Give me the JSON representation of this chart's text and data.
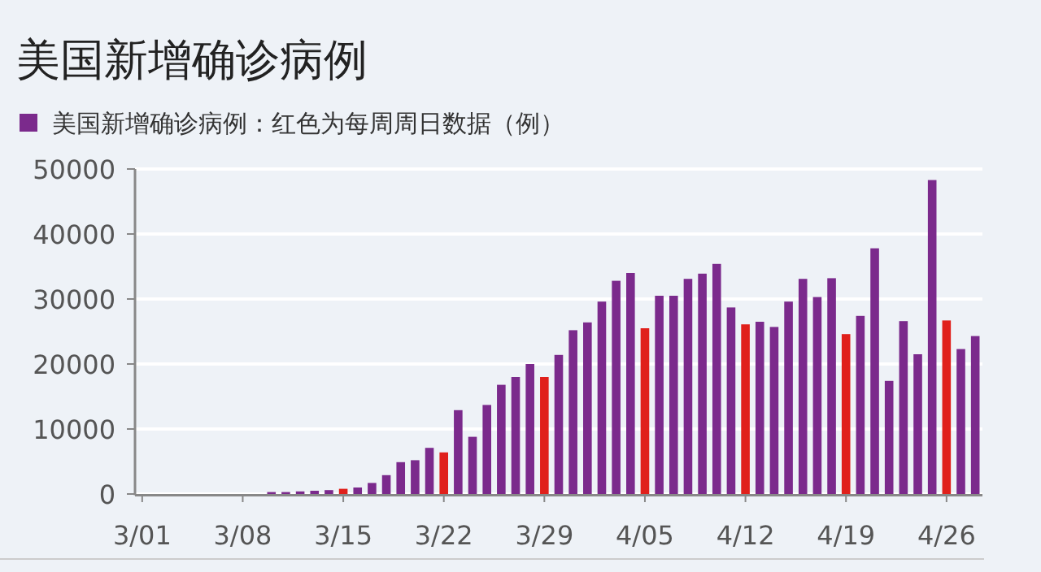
{
  "chart_data": {
    "type": "bar",
    "title": "美国新增确诊病例",
    "categories": [
      "3/01",
      null,
      null,
      null,
      null,
      null,
      null,
      "3/08",
      null,
      null,
      null,
      null,
      null,
      null,
      "3/15",
      null,
      null,
      null,
      null,
      null,
      null,
      "3/22",
      null,
      null,
      null,
      null,
      null,
      null,
      "3/29",
      null,
      null,
      null,
      null,
      null,
      null,
      "4/05",
      null,
      null,
      null,
      null,
      null,
      null,
      "4/12",
      null,
      null,
      null,
      null,
      null,
      null,
      "4/19",
      null,
      null,
      null,
      null,
      null,
      null,
      "4/26",
      null,
      null
    ],
    "series": [
      {
        "name": "美国新增确诊病例：红色为每周周日数据（例）",
        "color": "#7b2a8c",
        "values": [
          0,
          0,
          0,
          0,
          0,
          0,
          0,
          0,
          0,
          300,
          300,
          400,
          500,
          600,
          800,
          1000,
          1700,
          2900,
          4900,
          5200,
          7100,
          6400,
          12900,
          8800,
          13700,
          16800,
          18000,
          20000,
          18000,
          21400,
          25200,
          26400,
          29600,
          32800,
          34000,
          25500,
          30500,
          30500,
          33100,
          33900,
          35400,
          28700,
          26100,
          26500,
          25700,
          29600,
          33100,
          30300,
          33200,
          24600,
          27400,
          37800,
          17400,
          26600,
          21500,
          48300,
          26700,
          22300,
          24300
        ],
        "colors": [
          "#7b2a8c",
          "#7b2a8c",
          "#7b2a8c",
          "#7b2a8c",
          "#7b2a8c",
          "#7b2a8c",
          "#7b2a8c",
          "#7b2a8c",
          "#7b2a8c",
          "#7b2a8c",
          "#7b2a8c",
          "#7b2a8c",
          "#7b2a8c",
          "#7b2a8c",
          "#e0201b",
          "#7b2a8c",
          "#7b2a8c",
          "#7b2a8c",
          "#7b2a8c",
          "#7b2a8c",
          "#7b2a8c",
          "#e0201b",
          "#7b2a8c",
          "#7b2a8c",
          "#7b2a8c",
          "#7b2a8c",
          "#7b2a8c",
          "#7b2a8c",
          "#e0201b",
          "#7b2a8c",
          "#7b2a8c",
          "#7b2a8c",
          "#7b2a8c",
          "#7b2a8c",
          "#7b2a8c",
          "#e0201b",
          "#7b2a8c",
          "#7b2a8c",
          "#7b2a8c",
          "#7b2a8c",
          "#7b2a8c",
          "#7b2a8c",
          "#e0201b",
          "#7b2a8c",
          "#7b2a8c",
          "#7b2a8c",
          "#7b2a8c",
          "#7b2a8c",
          "#7b2a8c",
          "#e0201b",
          "#7b2a8c",
          "#7b2a8c",
          "#7b2a8c",
          "#7b2a8c",
          "#7b2a8c",
          "#7b2a8c",
          "#e0201b",
          "#7b2a8c",
          "#7b2a8c"
        ]
      }
    ],
    "ylim": [
      0,
      50000
    ],
    "yticks": [
      0,
      10000,
      20000,
      30000,
      40000,
      50000
    ],
    "grid": "y",
    "legend": "top left"
  }
}
